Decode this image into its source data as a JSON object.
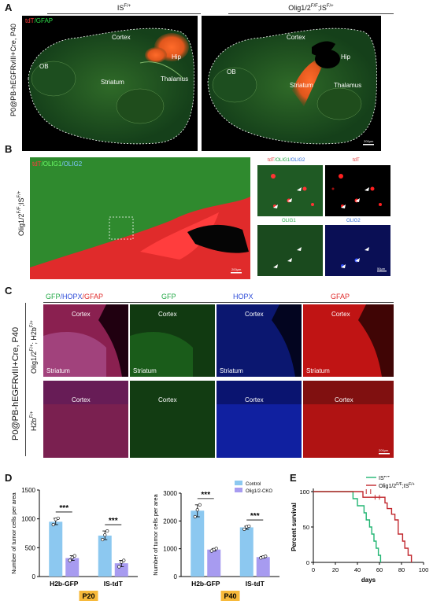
{
  "panels": {
    "a": "A",
    "b": "B",
    "c": "C",
    "d": "D",
    "e": "E"
  },
  "panel_a": {
    "left_vertical": "P0@PB-hEGFRvIII+Cre, P40",
    "head_left": "IS",
    "head_left_sup": "F/+",
    "head_right": "Olig1/2",
    "head_right_sup": "F/F",
    "head_right_tail": ";IS",
    "head_right_sup2": "F/+",
    "stain_tdt": "tdT",
    "stain_gfap": "/GFAP",
    "regions_left": {
      "cortex": "Cortex",
      "hip": "Hip",
      "ob": "OB",
      "striatum": "Striatum",
      "thalamus": "Thalamus"
    },
    "regions_right": {
      "cortex": "Cortex",
      "hip": "Hip",
      "ob": "OB",
      "striatum": "Striatum",
      "thalamus": "Thalamus"
    },
    "scalebar": "200μm"
  },
  "panel_b": {
    "left_vertical": "Olig1/2",
    "left_vertical_sup": "F/F",
    "left_vertical_tail": ";IS",
    "left_vertical_sup2": "F/+",
    "stain": {
      "tdt": "tdT",
      "olig1": "/OLIG1",
      "olig2": "/OLIG2"
    },
    "inset_titles": {
      "merge_tdt": "tdT",
      "merge_olig1": "/OLIG1",
      "merge_olig2": "/OLIG2",
      "tdt": "tdT",
      "olig1": "OLIG1",
      "olig2": "OLIG2"
    },
    "scalebar": "200μm",
    "scalebar_inset": "50μm"
  },
  "panel_c": {
    "left_vertical": "P0@PB-hEGFRvIII+Cre, P40",
    "row1_label": "Olig1/2",
    "row1_sup": "F/+",
    "row1_tail": "; H2b",
    "row1_sup2": "F/+",
    "row2_label": "H2b",
    "row2_sup": "F/+",
    "columns": {
      "merge_gfp": "GFP",
      "merge_hopx": "/HOPX",
      "merge_gfap": "/GFAP",
      "gfp": "GFP",
      "hopx": "HOPX",
      "gfap": "GFAP"
    },
    "row1_regions": {
      "cortex": "Cortex",
      "striatum": "Striatum"
    },
    "row2_regions": {
      "cortex": "Cortex"
    },
    "scalebar": "200μm"
  },
  "chart_data": [
    {
      "type": "bar",
      "panel": "D-P20",
      "categories": [
        "H2b-GFP",
        "IS-tdT"
      ],
      "series": [
        {
          "name": "Control",
          "values": [
            950,
            710
          ]
        },
        {
          "name": "Olig1/2-CKO",
          "values": [
            320,
            230
          ]
        }
      ],
      "points": [
        [
          [
            900,
            990,
            1010
          ],
          [
            280,
            330,
            360
          ]
        ],
        [
          [
            640,
            720,
            790
          ],
          [
            170,
            250,
            280
          ]
        ]
      ],
      "ylabel": "Number of tumor cells per area",
      "ylim": [
        0,
        1500
      ],
      "yticks": [
        0,
        500,
        1000,
        1500
      ],
      "significance": [
        "***",
        "***"
      ],
      "stage": "P20",
      "colors": {
        "control": "#8cc8f0",
        "cko": "#a79bf0"
      }
    },
    {
      "type": "bar",
      "panel": "D-P40",
      "categories": [
        "H2b-GFP",
        "IS-tdT"
      ],
      "series": [
        {
          "name": "Control",
          "values": [
            2370,
            1770
          ]
        },
        {
          "name": "Olig1/2-CKO",
          "values": [
            970,
            700
          ]
        }
      ],
      "points": [
        [
          [
            2150,
            2400,
            2580
          ],
          [
            920,
            970,
            1010
          ]
        ],
        [
          [
            1700,
            1790,
            1810
          ],
          [
            670,
            700,
            730
          ]
        ]
      ],
      "ylabel": "Number of tumor cells per area",
      "ylim": [
        0,
        3000
      ],
      "yticks": [
        0,
        1000,
        2000,
        3000
      ],
      "significance": [
        "***",
        "***"
      ],
      "stage": "P40",
      "colors": {
        "control": "#8cc8f0",
        "cko": "#a79bf0"
      }
    },
    {
      "type": "line",
      "panel": "E",
      "ylabel": "Percent survival",
      "xlabel": "days",
      "xlim": [
        0,
        100
      ],
      "ylim": [
        0,
        100
      ],
      "xticks": [
        0,
        20,
        40,
        60,
        80,
        100
      ],
      "yticks": [
        0,
        50,
        100
      ],
      "legend_placement": "top-right",
      "series": [
        {
          "label": "IS",
          "sup": "F/+",
          "color": "#22b573",
          "steps": [
            [
              0,
              100
            ],
            [
              36,
              100
            ],
            [
              36,
              90
            ],
            [
              40,
              90
            ],
            [
              40,
              80
            ],
            [
              46,
              80
            ],
            [
              46,
              70
            ],
            [
              48,
              70
            ],
            [
              48,
              60
            ],
            [
              51,
              60
            ],
            [
              51,
              50
            ],
            [
              53,
              50
            ],
            [
              53,
              40
            ],
            [
              55,
              40
            ],
            [
              55,
              30
            ],
            [
              57,
              30
            ],
            [
              57,
              20
            ],
            [
              59,
              20
            ],
            [
              59,
              10
            ],
            [
              61,
              10
            ],
            [
              61,
              0
            ]
          ],
          "censor": []
        },
        {
          "label": "Olig1/2",
          "sup": "F/F",
          "tail": ";IS",
          "sup2": "F/+",
          "color": "#c1272d",
          "steps": [
            [
              0,
              100
            ],
            [
              45,
              100
            ],
            [
              45,
              92
            ],
            [
              65,
              92
            ],
            [
              65,
              84
            ],
            [
              67,
              84
            ],
            [
              67,
              76
            ],
            [
              71,
              76
            ],
            [
              71,
              68
            ],
            [
              74,
              68
            ],
            [
              74,
              60
            ],
            [
              77,
              60
            ],
            [
              77,
              40
            ],
            [
              81,
              40
            ],
            [
              81,
              30
            ],
            [
              83,
              30
            ],
            [
              83,
              20
            ],
            [
              86,
              20
            ],
            [
              86,
              10
            ],
            [
              89,
              10
            ],
            [
              89,
              0
            ]
          ],
          "censor": [
            [
              48,
              100
            ],
            [
              52,
              100
            ],
            [
              56,
              92
            ],
            [
              60,
              92
            ]
          ]
        }
      ]
    }
  ],
  "legend_d": {
    "control": "Control",
    "cko": "Olig1/2-CKO"
  }
}
